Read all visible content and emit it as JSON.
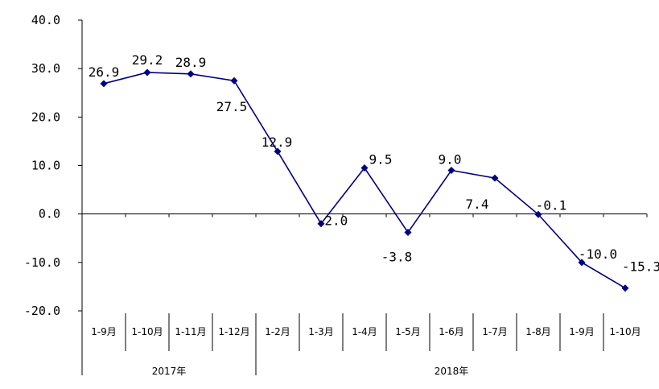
{
  "chart_data": {
    "type": "line",
    "categories": [
      "1-9月",
      "1-10月",
      "1-11月",
      "1-12月",
      "1-2月",
      "1-3月",
      "1-4月",
      "1-5月",
      "1-6月",
      "1-7月",
      "1-8月",
      "1-9月",
      "1-10月"
    ],
    "groups": [
      {
        "label": "2017年",
        "count": 4
      },
      {
        "label": "2018年",
        "count": 9
      }
    ],
    "series": [
      {
        "values": [
          26.9,
          29.2,
          28.9,
          27.5,
          12.9,
          -2.0,
          9.5,
          -3.8,
          9.0,
          7.4,
          -0.1,
          -10.0,
          -15.3
        ],
        "data_labels": [
          "26.9",
          "29.2",
          "28.9",
          "27.5",
          "12.9",
          "-2.0",
          "9.5",
          "-3.8",
          "9.0",
          "7.4",
          "-0.1",
          "-10.0",
          "-15.3"
        ],
        "color": "#000080"
      }
    ],
    "ylim": [
      -20,
      40
    ],
    "yticks": [
      -20,
      -10,
      0,
      10,
      20,
      30,
      40
    ],
    "ytick_labels": [
      "-20.0",
      "-10.0",
      "0.0",
      "10.0",
      "20.0",
      "30.0",
      "40.0"
    ],
    "marker": "diamond",
    "grid": false,
    "legend": "none",
    "title": "",
    "xlabel": "",
    "ylabel": ""
  }
}
